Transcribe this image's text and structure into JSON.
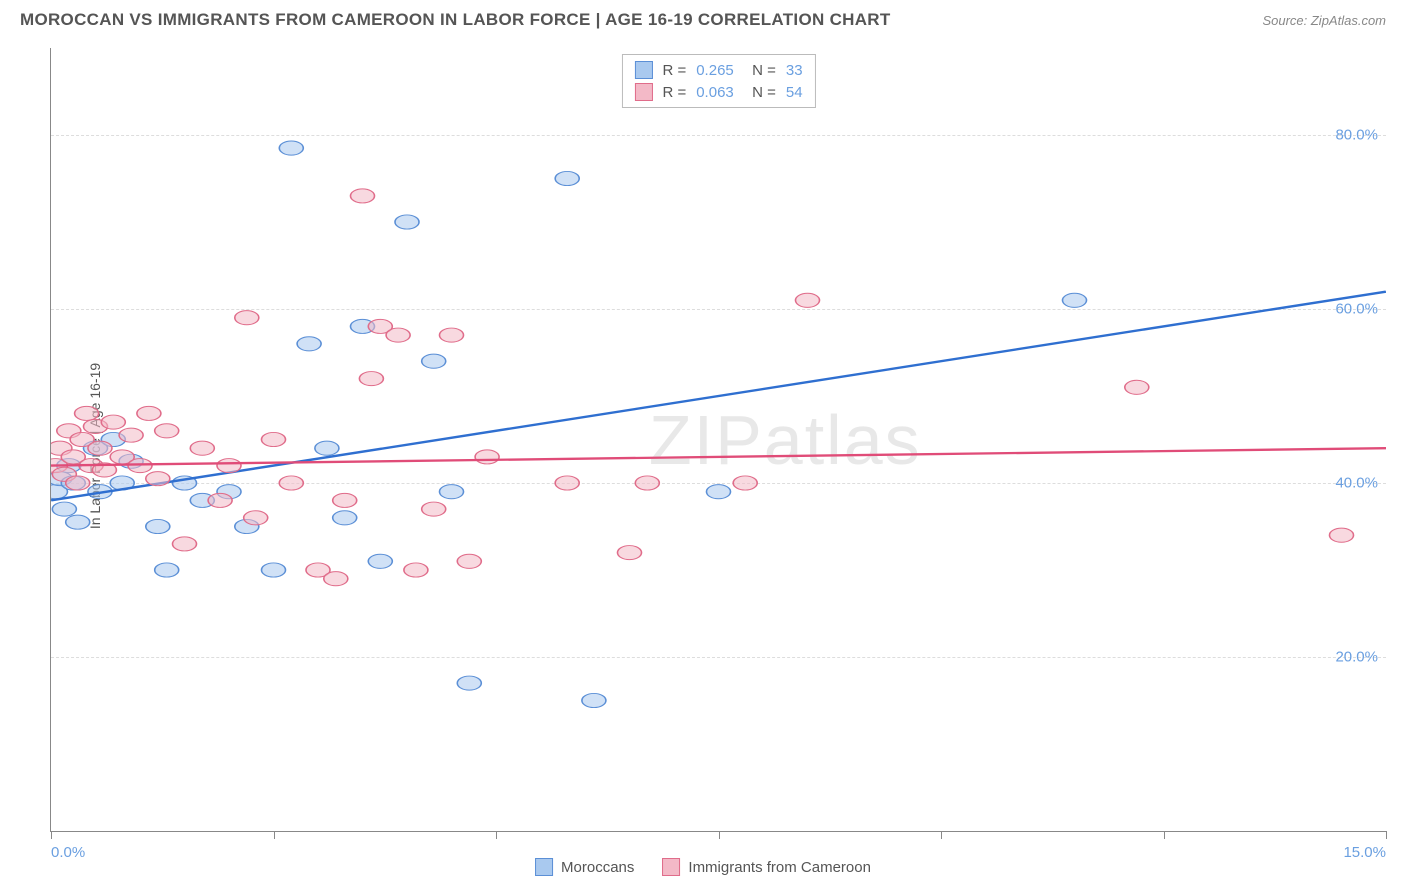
{
  "header": {
    "title": "MOROCCAN VS IMMIGRANTS FROM CAMEROON IN LABOR FORCE | AGE 16-19 CORRELATION CHART",
    "source": "Source: ZipAtlas.com"
  },
  "y_axis_label": "In Labor Force | Age 16-19",
  "watermark": "ZIPatlas",
  "chart": {
    "type": "scatter",
    "xlim": [
      0,
      15
    ],
    "ylim": [
      0,
      90
    ],
    "x_ticks": [
      0,
      2.5,
      5,
      7.5,
      10,
      12.5,
      15
    ],
    "x_tick_labels": {
      "start": "0.0%",
      "end": "15.0%"
    },
    "y_gridlines": [
      20,
      40,
      60,
      80
    ],
    "y_tick_labels": [
      "20.0%",
      "40.0%",
      "60.0%",
      "80.0%"
    ],
    "background_color": "#ffffff",
    "grid_color": "#dddddd",
    "axis_text_color": "#6a9fe0",
    "series": [
      {
        "name": "Moroccans",
        "fill": "#a9c9ef",
        "stroke": "#5b8fd6",
        "fill_opacity": 0.55,
        "marker_r": 9,
        "trend": {
          "x1": 0,
          "y1": 38,
          "x2": 15,
          "y2": 62,
          "color": "#2f6fd0",
          "width": 2
        },
        "R": "0.265",
        "N": "33",
        "points": [
          [
            0.05,
            39
          ],
          [
            0.1,
            40.5
          ],
          [
            0.15,
            37
          ],
          [
            0.2,
            42
          ],
          [
            0.25,
            40
          ],
          [
            0.3,
            35.5
          ],
          [
            0.5,
            44
          ],
          [
            0.55,
            39
          ],
          [
            0.7,
            45
          ],
          [
            0.8,
            40
          ],
          [
            0.9,
            42.5
          ],
          [
            1.2,
            35
          ],
          [
            1.3,
            30
          ],
          [
            1.5,
            40
          ],
          [
            1.7,
            38
          ],
          [
            2.0,
            39
          ],
          [
            2.2,
            35
          ],
          [
            2.5,
            30
          ],
          [
            2.7,
            78.5
          ],
          [
            2.9,
            56
          ],
          [
            3.1,
            44
          ],
          [
            3.3,
            36
          ],
          [
            3.5,
            58
          ],
          [
            3.7,
            31
          ],
          [
            4.0,
            70
          ],
          [
            4.3,
            54
          ],
          [
            4.5,
            39
          ],
          [
            4.7,
            17
          ],
          [
            5.8,
            75
          ],
          [
            6.1,
            15
          ],
          [
            7.5,
            39
          ],
          [
            11.5,
            61
          ]
        ]
      },
      {
        "name": "Immigrants from Cameroon",
        "fill": "#f3b9c7",
        "stroke": "#e06c8a",
        "fill_opacity": 0.55,
        "marker_r": 9,
        "trend": {
          "x1": 0,
          "y1": 42,
          "x2": 15,
          "y2": 44,
          "color": "#e04c78",
          "width": 2
        },
        "R": "0.063",
        "N": "54",
        "points": [
          [
            0.05,
            42
          ],
          [
            0.1,
            44
          ],
          [
            0.15,
            41
          ],
          [
            0.2,
            46
          ],
          [
            0.25,
            43
          ],
          [
            0.3,
            40
          ],
          [
            0.35,
            45
          ],
          [
            0.4,
            48
          ],
          [
            0.45,
            42
          ],
          [
            0.5,
            46.5
          ],
          [
            0.55,
            44
          ],
          [
            0.6,
            41.5
          ],
          [
            0.7,
            47
          ],
          [
            0.8,
            43
          ],
          [
            0.9,
            45.5
          ],
          [
            1.0,
            42
          ],
          [
            1.1,
            48
          ],
          [
            1.2,
            40.5
          ],
          [
            1.3,
            46
          ],
          [
            1.5,
            33
          ],
          [
            1.7,
            44
          ],
          [
            1.9,
            38
          ],
          [
            2.0,
            42
          ],
          [
            2.2,
            59
          ],
          [
            2.3,
            36
          ],
          [
            2.5,
            45
          ],
          [
            2.7,
            40
          ],
          [
            3.0,
            30
          ],
          [
            3.2,
            29
          ],
          [
            3.3,
            38
          ],
          [
            3.5,
            73
          ],
          [
            3.6,
            52
          ],
          [
            3.7,
            58
          ],
          [
            3.9,
            57
          ],
          [
            4.1,
            30
          ],
          [
            4.3,
            37
          ],
          [
            4.5,
            57
          ],
          [
            4.7,
            31
          ],
          [
            4.9,
            43
          ],
          [
            5.8,
            40
          ],
          [
            6.5,
            32
          ],
          [
            6.7,
            40
          ],
          [
            7.8,
            40
          ],
          [
            8.5,
            61
          ],
          [
            12.2,
            51
          ],
          [
            14.5,
            34
          ]
        ]
      }
    ]
  },
  "legend_bottom": [
    {
      "label": "Moroccans",
      "fill": "#a9c9ef",
      "stroke": "#5b8fd6"
    },
    {
      "label": "Immigrants from Cameroon",
      "fill": "#f3b9c7",
      "stroke": "#e06c8a"
    }
  ]
}
